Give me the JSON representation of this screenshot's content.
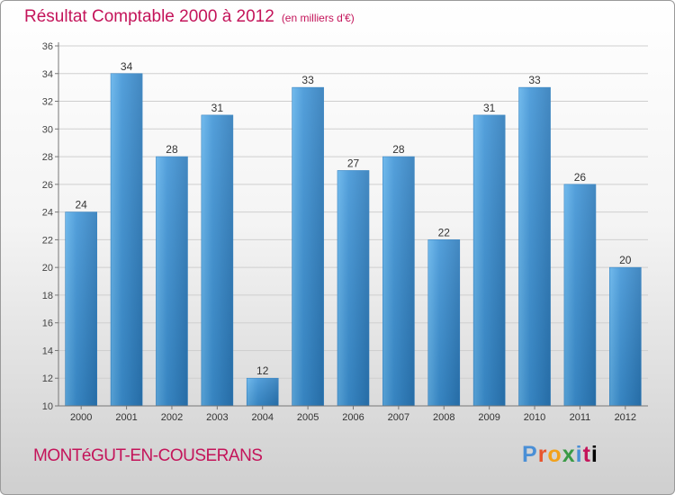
{
  "header": {
    "title": "Résultat Comptable 2000 à 2012",
    "subtitle": "(en milliers d'€)"
  },
  "footer": {
    "commune": "MONTéGUT-EN-COUSERANS",
    "logo_text": "Proxiti"
  },
  "colors": {
    "bar": "#3d93d6",
    "bar_light": "#5fb1ea",
    "bar_dark": "#2a78b8",
    "title": "#c4145a"
  },
  "chart_data": {
    "type": "bar",
    "title": "Résultat Comptable 2000 à 2012",
    "subtitle": "(en milliers d'€)",
    "xlabel": "",
    "ylabel": "",
    "ylim": [
      10,
      36
    ],
    "yticks": [
      10,
      12,
      14,
      16,
      18,
      20,
      22,
      24,
      26,
      28,
      30,
      32,
      34,
      36
    ],
    "grid": true,
    "categories": [
      "2000",
      "2001",
      "2002",
      "2003",
      "2004",
      "2005",
      "2006",
      "2007",
      "2008",
      "2009",
      "2010",
      "2011",
      "2012"
    ],
    "values": [
      24,
      34,
      28,
      31,
      12,
      33,
      27,
      28,
      22,
      31,
      33,
      26,
      20
    ]
  }
}
